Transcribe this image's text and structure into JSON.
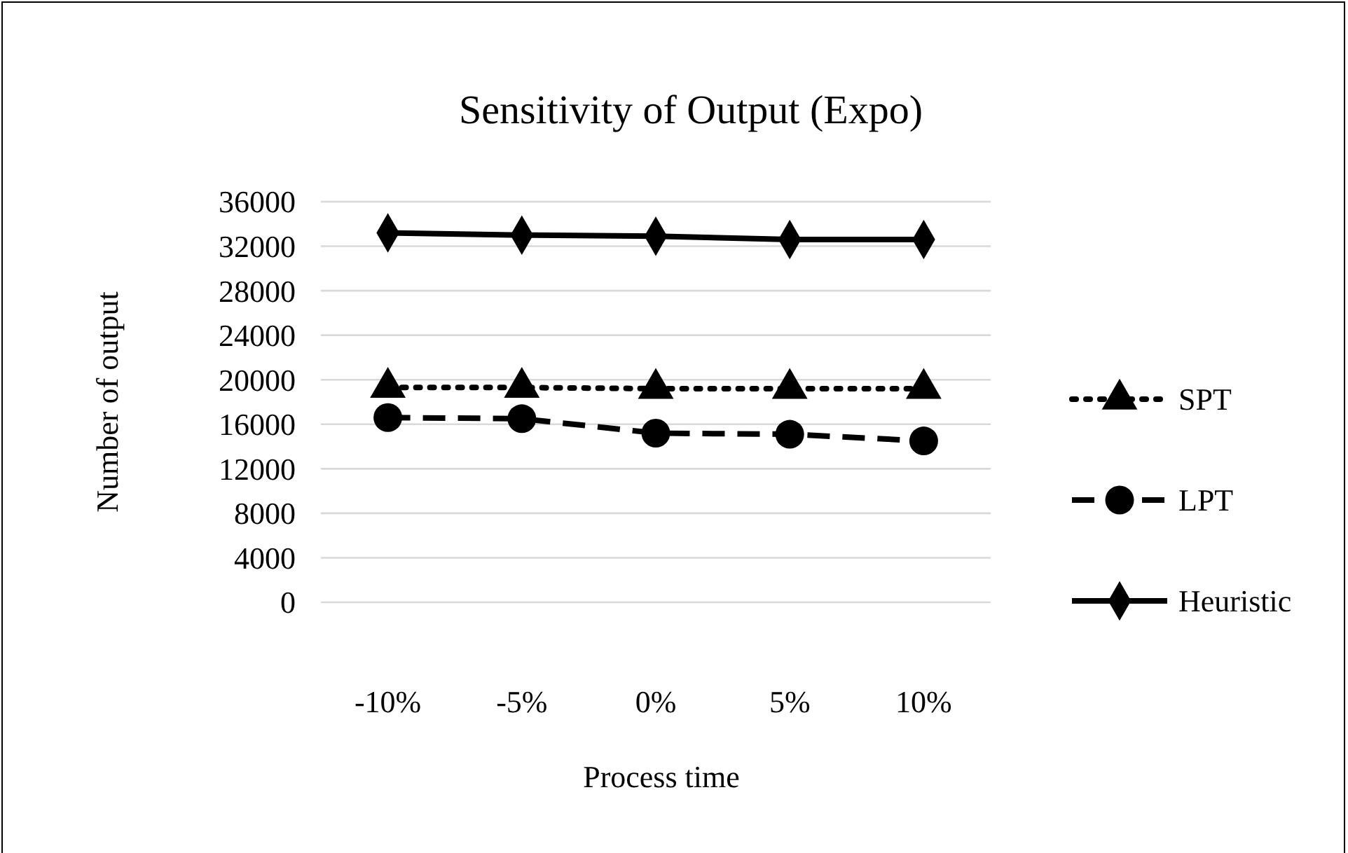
{
  "chart_data": {
    "type": "line",
    "title": "Sensitivity of  Output (Expo)",
    "xlabel": "Process time",
    "ylabel": "Number of output",
    "categories": [
      "-10%",
      "-5%",
      "0%",
      "5%",
      "10%"
    ],
    "series": [
      {
        "name": "SPT",
        "color": "#000000",
        "values": [
          19300,
          19300,
          19200,
          19200,
          19200
        ],
        "marker": "triangle",
        "line_style": "dotted"
      },
      {
        "name": "LPT",
        "color": "#000000",
        "values": [
          16600,
          16500,
          15200,
          15100,
          14500
        ],
        "marker": "circle",
        "line_style": "dashed"
      },
      {
        "name": "Heuristic",
        "color": "#000000",
        "values": [
          33200,
          33000,
          32900,
          32600,
          32600
        ],
        "marker": "diamond",
        "line_style": "solid"
      }
    ],
    "ylim": [
      0,
      36000
    ],
    "yticks": [
      0,
      4000,
      8000,
      12000,
      16000,
      20000,
      24000,
      28000,
      32000,
      36000
    ],
    "grid": "y",
    "legend": "right"
  }
}
